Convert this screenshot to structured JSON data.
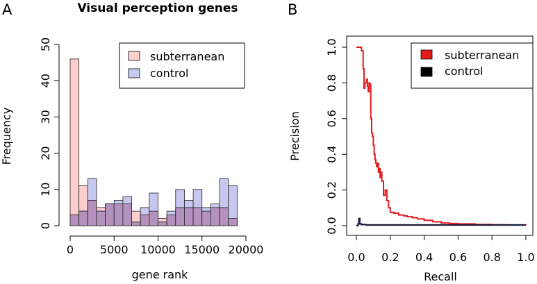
{
  "chart_data": [
    {
      "panel_label": "A",
      "type": "bar",
      "title": "Visual perception genes",
      "xlabel": "gene rank",
      "ylabel": "Frequency",
      "bin_width": 1000,
      "xlim": [
        0,
        20000
      ],
      "ylim": [
        0,
        50
      ],
      "x_ticks": [
        0,
        5000,
        10000,
        15000,
        20000
      ],
      "y_ticks": [
        0,
        10,
        20,
        30,
        40,
        50
      ],
      "x_tick_labels": [
        "0",
        "5000",
        "10000",
        "15000",
        "20000"
      ],
      "y_tick_labels": [
        "0",
        "10",
        "20",
        "30",
        "40",
        "50"
      ],
      "legend_position": "top-right",
      "overlap_color": "#b592be",
      "series": [
        {
          "name": "subterranean",
          "color": "#fccfcf",
          "bin_starts": [
            0,
            1000,
            2000,
            3000,
            4000,
            5000,
            6000,
            7000,
            8000,
            9000,
            10000,
            11000,
            12000,
            13000,
            14000,
            15000,
            16000,
            17000,
            18000
          ],
          "values": [
            46,
            11,
            7,
            5,
            6,
            6,
            6,
            4,
            3,
            4,
            2,
            3,
            5,
            5,
            5,
            4,
            5,
            5,
            2
          ]
        },
        {
          "name": "control",
          "color": "#c6c8f0",
          "bin_starts": [
            0,
            1000,
            2000,
            3000,
            4000,
            5000,
            6000,
            7000,
            8000,
            9000,
            10000,
            11000,
            12000,
            13000,
            14000,
            15000,
            16000,
            17000,
            18000
          ],
          "values": [
            3,
            4,
            13,
            4,
            6,
            7,
            8,
            1,
            5,
            9,
            1,
            4,
            10,
            7,
            10,
            5,
            6,
            13,
            11
          ]
        }
      ]
    },
    {
      "panel_label": "B",
      "type": "line",
      "title": "",
      "xlabel": "Recall",
      "ylabel": "Precision",
      "xlim": [
        0,
        1
      ],
      "ylim": [
        0,
        1
      ],
      "x_ticks": [
        0,
        0.2,
        0.4,
        0.6,
        0.8,
        1.0
      ],
      "y_ticks": [
        0,
        0.2,
        0.4,
        0.6,
        0.8,
        1.0
      ],
      "x_tick_labels": [
        "0.0",
        "0.2",
        "0.4",
        "0.6",
        "0.8",
        "1.0"
      ],
      "y_tick_labels": [
        "0.0",
        "0.2",
        "0.4",
        "0.6",
        "0.8",
        "1.0"
      ],
      "legend_position": "top-right",
      "series": [
        {
          "name": "subterranean",
          "color": "#e31a1c",
          "x": [
            0.0,
            0.03,
            0.03,
            0.04,
            0.045,
            0.05,
            0.055,
            0.06,
            0.065,
            0.07,
            0.075,
            0.08,
            0.085,
            0.09,
            0.095,
            0.1,
            0.105,
            0.11,
            0.115,
            0.12,
            0.125,
            0.13,
            0.135,
            0.14,
            0.145,
            0.15,
            0.16,
            0.17,
            0.18,
            0.19,
            0.2,
            0.22,
            0.25,
            0.28,
            0.3,
            0.33,
            0.36,
            0.4,
            0.45,
            0.5,
            0.55,
            0.6,
            0.7,
            0.8,
            0.9,
            1.0
          ],
          "y": [
            1.0,
            1.0,
            0.98,
            0.88,
            0.77,
            0.8,
            0.8,
            0.82,
            0.78,
            0.75,
            0.8,
            0.79,
            0.6,
            0.52,
            0.5,
            0.45,
            0.4,
            0.37,
            0.35,
            0.33,
            0.35,
            0.3,
            0.32,
            0.27,
            0.3,
            0.25,
            0.17,
            0.2,
            0.14,
            0.1,
            0.075,
            0.07,
            0.06,
            0.055,
            0.05,
            0.045,
            0.038,
            0.03,
            0.022,
            0.015,
            0.012,
            0.01,
            0.007,
            0.005,
            0.004,
            0.003
          ]
        },
        {
          "name": "control",
          "color": "#1a1a3a",
          "x": [
            0.0,
            0.01,
            0.015,
            0.02,
            0.03,
            0.06,
            0.1,
            0.2,
            0.4,
            0.6,
            0.8,
            1.0
          ],
          "y": [
            0.0,
            0.01,
            0.04,
            0.01,
            0.006,
            0.004,
            0.004,
            0.004,
            0.004,
            0.004,
            0.004,
            0.004
          ]
        }
      ]
    }
  ]
}
